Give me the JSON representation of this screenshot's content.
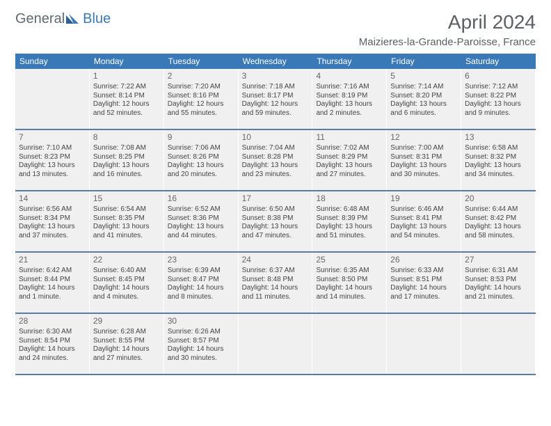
{
  "logo": {
    "text1": "General",
    "text2": "Blue"
  },
  "title": "April 2024",
  "location": "Maizieres-la-Grande-Paroisse, France",
  "colors": {
    "header_bg": "#3a79b7",
    "row_border": "#5a7da3",
    "cell_bg": "#f0f0f0",
    "text": "#444444",
    "title_text": "#5a6066"
  },
  "daysOfWeek": [
    "Sunday",
    "Monday",
    "Tuesday",
    "Wednesday",
    "Thursday",
    "Friday",
    "Saturday"
  ],
  "weeks": [
    [
      {
        "empty": true
      },
      {
        "num": "1",
        "sunrise": "Sunrise: 7:22 AM",
        "sunset": "Sunset: 8:14 PM",
        "day1": "Daylight: 12 hours",
        "day2": "and 52 minutes."
      },
      {
        "num": "2",
        "sunrise": "Sunrise: 7:20 AM",
        "sunset": "Sunset: 8:16 PM",
        "day1": "Daylight: 12 hours",
        "day2": "and 55 minutes."
      },
      {
        "num": "3",
        "sunrise": "Sunrise: 7:18 AM",
        "sunset": "Sunset: 8:17 PM",
        "day1": "Daylight: 12 hours",
        "day2": "and 59 minutes."
      },
      {
        "num": "4",
        "sunrise": "Sunrise: 7:16 AM",
        "sunset": "Sunset: 8:19 PM",
        "day1": "Daylight: 13 hours",
        "day2": "and 2 minutes."
      },
      {
        "num": "5",
        "sunrise": "Sunrise: 7:14 AM",
        "sunset": "Sunset: 8:20 PM",
        "day1": "Daylight: 13 hours",
        "day2": "and 6 minutes."
      },
      {
        "num": "6",
        "sunrise": "Sunrise: 7:12 AM",
        "sunset": "Sunset: 8:22 PM",
        "day1": "Daylight: 13 hours",
        "day2": "and 9 minutes."
      }
    ],
    [
      {
        "num": "7",
        "sunrise": "Sunrise: 7:10 AM",
        "sunset": "Sunset: 8:23 PM",
        "day1": "Daylight: 13 hours",
        "day2": "and 13 minutes."
      },
      {
        "num": "8",
        "sunrise": "Sunrise: 7:08 AM",
        "sunset": "Sunset: 8:25 PM",
        "day1": "Daylight: 13 hours",
        "day2": "and 16 minutes."
      },
      {
        "num": "9",
        "sunrise": "Sunrise: 7:06 AM",
        "sunset": "Sunset: 8:26 PM",
        "day1": "Daylight: 13 hours",
        "day2": "and 20 minutes."
      },
      {
        "num": "10",
        "sunrise": "Sunrise: 7:04 AM",
        "sunset": "Sunset: 8:28 PM",
        "day1": "Daylight: 13 hours",
        "day2": "and 23 minutes."
      },
      {
        "num": "11",
        "sunrise": "Sunrise: 7:02 AM",
        "sunset": "Sunset: 8:29 PM",
        "day1": "Daylight: 13 hours",
        "day2": "and 27 minutes."
      },
      {
        "num": "12",
        "sunrise": "Sunrise: 7:00 AM",
        "sunset": "Sunset: 8:31 PM",
        "day1": "Daylight: 13 hours",
        "day2": "and 30 minutes."
      },
      {
        "num": "13",
        "sunrise": "Sunrise: 6:58 AM",
        "sunset": "Sunset: 8:32 PM",
        "day1": "Daylight: 13 hours",
        "day2": "and 34 minutes."
      }
    ],
    [
      {
        "num": "14",
        "sunrise": "Sunrise: 6:56 AM",
        "sunset": "Sunset: 8:34 PM",
        "day1": "Daylight: 13 hours",
        "day2": "and 37 minutes."
      },
      {
        "num": "15",
        "sunrise": "Sunrise: 6:54 AM",
        "sunset": "Sunset: 8:35 PM",
        "day1": "Daylight: 13 hours",
        "day2": "and 41 minutes."
      },
      {
        "num": "16",
        "sunrise": "Sunrise: 6:52 AM",
        "sunset": "Sunset: 8:36 PM",
        "day1": "Daylight: 13 hours",
        "day2": "and 44 minutes."
      },
      {
        "num": "17",
        "sunrise": "Sunrise: 6:50 AM",
        "sunset": "Sunset: 8:38 PM",
        "day1": "Daylight: 13 hours",
        "day2": "and 47 minutes."
      },
      {
        "num": "18",
        "sunrise": "Sunrise: 6:48 AM",
        "sunset": "Sunset: 8:39 PM",
        "day1": "Daylight: 13 hours",
        "day2": "and 51 minutes."
      },
      {
        "num": "19",
        "sunrise": "Sunrise: 6:46 AM",
        "sunset": "Sunset: 8:41 PM",
        "day1": "Daylight: 13 hours",
        "day2": "and 54 minutes."
      },
      {
        "num": "20",
        "sunrise": "Sunrise: 6:44 AM",
        "sunset": "Sunset: 8:42 PM",
        "day1": "Daylight: 13 hours",
        "day2": "and 58 minutes."
      }
    ],
    [
      {
        "num": "21",
        "sunrise": "Sunrise: 6:42 AM",
        "sunset": "Sunset: 8:44 PM",
        "day1": "Daylight: 14 hours",
        "day2": "and 1 minute."
      },
      {
        "num": "22",
        "sunrise": "Sunrise: 6:40 AM",
        "sunset": "Sunset: 8:45 PM",
        "day1": "Daylight: 14 hours",
        "day2": "and 4 minutes."
      },
      {
        "num": "23",
        "sunrise": "Sunrise: 6:39 AM",
        "sunset": "Sunset: 8:47 PM",
        "day1": "Daylight: 14 hours",
        "day2": "and 8 minutes."
      },
      {
        "num": "24",
        "sunrise": "Sunrise: 6:37 AM",
        "sunset": "Sunset: 8:48 PM",
        "day1": "Daylight: 14 hours",
        "day2": "and 11 minutes."
      },
      {
        "num": "25",
        "sunrise": "Sunrise: 6:35 AM",
        "sunset": "Sunset: 8:50 PM",
        "day1": "Daylight: 14 hours",
        "day2": "and 14 minutes."
      },
      {
        "num": "26",
        "sunrise": "Sunrise: 6:33 AM",
        "sunset": "Sunset: 8:51 PM",
        "day1": "Daylight: 14 hours",
        "day2": "and 17 minutes."
      },
      {
        "num": "27",
        "sunrise": "Sunrise: 6:31 AM",
        "sunset": "Sunset: 8:53 PM",
        "day1": "Daylight: 14 hours",
        "day2": "and 21 minutes."
      }
    ],
    [
      {
        "num": "28",
        "sunrise": "Sunrise: 6:30 AM",
        "sunset": "Sunset: 8:54 PM",
        "day1": "Daylight: 14 hours",
        "day2": "and 24 minutes."
      },
      {
        "num": "29",
        "sunrise": "Sunrise: 6:28 AM",
        "sunset": "Sunset: 8:55 PM",
        "day1": "Daylight: 14 hours",
        "day2": "and 27 minutes."
      },
      {
        "num": "30",
        "sunrise": "Sunrise: 6:26 AM",
        "sunset": "Sunset: 8:57 PM",
        "day1": "Daylight: 14 hours",
        "day2": "and 30 minutes."
      },
      {
        "empty": true
      },
      {
        "empty": true
      },
      {
        "empty": true
      },
      {
        "empty": true
      }
    ]
  ]
}
